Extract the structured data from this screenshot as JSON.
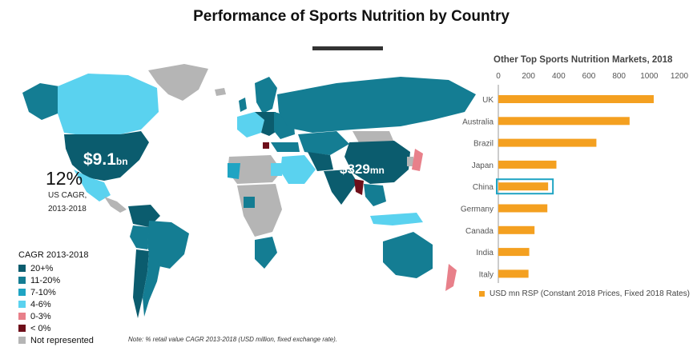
{
  "title": "Performance of Sports Nutrition by Country",
  "map": {
    "callouts": {
      "us_value": "$9.1",
      "us_unit": "bn",
      "china_value": "$329",
      "china_unit": "mn"
    },
    "us_cagr_value": "12%",
    "us_cagr_label_1": "US CAGR,",
    "us_cagr_label_2": "2013-2018",
    "legend_title": "CAGR 2013-2018",
    "legend": [
      {
        "label": "20+%",
        "color": "#0b5c6e"
      },
      {
        "label": "11-20%",
        "color": "#147d93"
      },
      {
        "label": "7-10%",
        "color": "#1fa4c3"
      },
      {
        "label": "4-6%",
        "color": "#5ad2ef"
      },
      {
        "label": "0-3%",
        "color": "#e8808a"
      },
      {
        "label": "< 0%",
        "color": "#6e0f1a"
      },
      {
        "label": "Not represented",
        "color": "#b5b5b5"
      }
    ],
    "note": "Note: % retail value CAGR 2013-2018 (USD million, fixed exchange rate)."
  },
  "chart_data": {
    "type": "bar",
    "orientation": "horizontal",
    "title": "Other Top Sports Nutrition Markets, 2018",
    "categories": [
      "UK",
      "Australia",
      "Brazil",
      "Japan",
      "China",
      "Germany",
      "Canada",
      "India",
      "Italy"
    ],
    "values": [
      1030,
      870,
      650,
      385,
      330,
      325,
      240,
      205,
      200
    ],
    "xlim": [
      0,
      1200
    ],
    "xticks": [
      "0",
      "200",
      "400",
      "600",
      "800",
      "1000",
      "1200"
    ],
    "series_name": "USD mn RSP (Constant 2018 Prices, Fixed 2018 Rates)",
    "highlighted_category": "China",
    "bar_color": "#f4a020",
    "highlight_color": "#1fa4c3",
    "legend_position": "bottom"
  }
}
